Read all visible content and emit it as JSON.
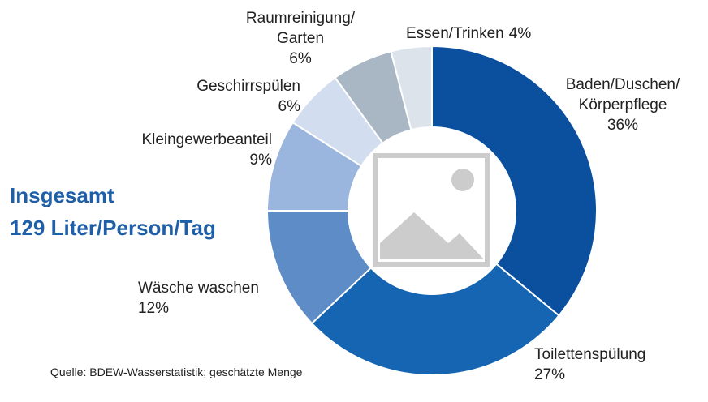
{
  "chart_data": {
    "type": "donut",
    "title": "Insgesamt",
    "subtitle": "129 Liter/Person/Tag",
    "source": "Quelle: BDEW-Wasserstatistik; geschätzte Menge",
    "categories": [
      "Baden/Duschen/Körperpflege",
      "Toilettenspülung",
      "Wäsche waschen",
      "Kleingewerbeanteil",
      "Geschirrspülen",
      "Raumreinigung/Garten",
      "Essen/Trinken"
    ],
    "values": [
      36,
      27,
      12,
      9,
      6,
      6,
      4
    ],
    "value_labels": [
      "36%",
      "27%",
      "12%",
      "9%",
      "6%",
      "6%",
      "4%"
    ],
    "colors": [
      "#0b4f9f",
      "#1565b2",
      "#5d8cc6",
      "#9ab5de",
      "#d2ddef",
      "#a9b7c4",
      "#dde3eb"
    ]
  }
}
